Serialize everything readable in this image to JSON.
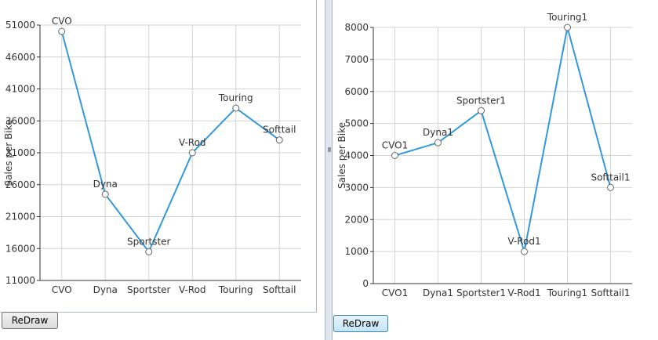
{
  "buttons": {
    "left_label": "ReDraw",
    "right_label": "ReDraw"
  },
  "chart_data": [
    {
      "type": "line",
      "ylabel": "Sales per Bike",
      "categories": [
        "CVO",
        "Dyna",
        "Sportster",
        "V-Rod",
        "Touring",
        "Softtail"
      ],
      "values": [
        50000,
        24500,
        15500,
        31000,
        38000,
        33000
      ],
      "point_labels": [
        "CVO",
        "Dyna",
        "Sportster",
        "V-Rod",
        "Touring",
        "Softtail"
      ],
      "ylim": [
        11000,
        51000
      ],
      "yticks": [
        11000,
        16000,
        21000,
        26000,
        31000,
        36000,
        41000,
        46000,
        51000
      ],
      "grid": true,
      "color": "#3399dd"
    },
    {
      "type": "line",
      "ylabel": "Sales per Bike",
      "categories": [
        "CVO1",
        "Dyna1",
        "Sportster1",
        "V-Rod1",
        "Touring1",
        "Softtail1"
      ],
      "values": [
        4000,
        4400,
        5400,
        1000,
        8000,
        3000
      ],
      "point_labels": [
        "CVO1",
        "Dyna1",
        "Sportster1",
        "V-Rod1",
        "Touring1",
        "Softtail1"
      ],
      "ylim": [
        0,
        8000
      ],
      "yticks": [
        0,
        1000,
        2000,
        3000,
        4000,
        5000,
        6000,
        7000,
        8000
      ],
      "grid": true,
      "color": "#3399dd"
    }
  ]
}
